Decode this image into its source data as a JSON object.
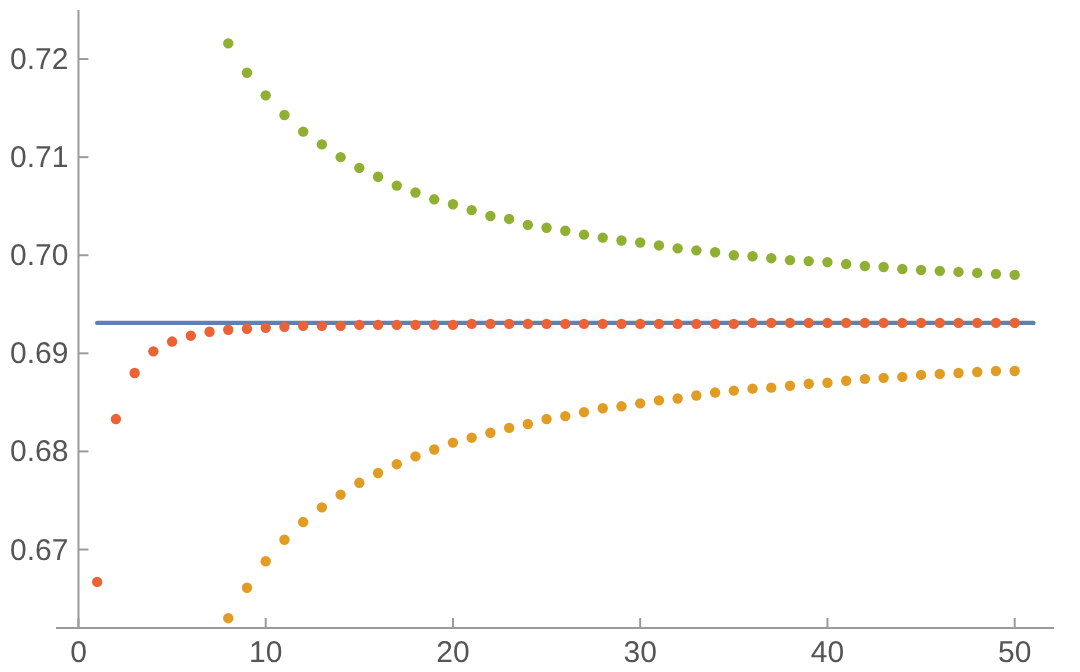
{
  "chart_data": {
    "type": "scatter",
    "xlim": [
      -1.2,
      52.1
    ],
    "ylim": [
      0.662,
      0.725
    ],
    "xticks": [
      0,
      10,
      20,
      30,
      40,
      50
    ],
    "yticks": [
      0.67,
      0.68,
      0.69,
      {
        "value": 0.7,
        "label": "0.70"
      },
      0.71,
      0.72
    ],
    "grid": false,
    "marker": "circle",
    "series": [
      {
        "type": "line",
        "marker": "none",
        "color": "#5e81b5",
        "x": [
          1,
          51
        ],
        "values": [
          0.6931,
          0.6931
        ]
      },
      {
        "color": "#eb6235",
        "x": [
          1,
          2,
          3,
          4,
          5,
          6,
          7,
          8,
          9,
          10,
          11,
          12,
          13,
          14,
          15,
          16,
          17,
          18,
          19,
          20,
          21,
          22,
          23,
          24,
          25,
          26,
          27,
          28,
          29,
          30,
          31,
          32,
          33,
          34,
          35,
          36,
          37,
          38,
          39,
          40,
          41,
          42,
          43,
          44,
          45,
          46,
          47,
          48,
          49,
          50
        ],
        "values": [
          0.6667,
          0.6833,
          0.688,
          0.6902,
          0.6912,
          0.6918,
          0.6922,
          0.6924,
          0.6925,
          0.6926,
          0.6927,
          0.6928,
          0.6928,
          0.6928,
          0.6929,
          0.6929,
          0.6929,
          0.6929,
          0.6929,
          0.6929,
          0.693,
          0.693,
          0.693,
          0.693,
          0.693,
          0.693,
          0.693,
          0.693,
          0.693,
          0.693,
          0.693,
          0.693,
          0.693,
          0.693,
          0.693,
          0.6931,
          0.6931,
          0.6931,
          0.6931,
          0.6931,
          0.6931,
          0.6931,
          0.6931,
          0.6931,
          0.6931,
          0.6931,
          0.6931,
          0.6931,
          0.6931,
          0.6931
        ]
      },
      {
        "color": "#8fb032",
        "x": [
          8,
          9,
          10,
          11,
          12,
          13,
          14,
          15,
          16,
          17,
          18,
          19,
          20,
          21,
          22,
          23,
          24,
          25,
          26,
          27,
          28,
          29,
          30,
          31,
          32,
          33,
          34,
          35,
          36,
          37,
          38,
          39,
          40,
          41,
          42,
          43,
          44,
          45,
          46,
          47,
          48,
          49,
          50
        ],
        "values": [
          0.7216,
          0.7186,
          0.7163,
          0.7143,
          0.7126,
          0.7113,
          0.71,
          0.7089,
          0.708,
          0.7071,
          0.7064,
          0.7057,
          0.7052,
          0.7046,
          0.704,
          0.7037,
          0.7031,
          0.7028,
          0.7025,
          0.7021,
          0.7018,
          0.7015,
          0.7013,
          0.701,
          0.7007,
          0.7005,
          0.7003,
          0.7,
          0.6999,
          0.6997,
          0.6995,
          0.6994,
          0.6993,
          0.6991,
          0.6989,
          0.6988,
          0.6986,
          0.6985,
          0.6984,
          0.6983,
          0.6982,
          0.6981,
          0.698
        ]
      },
      {
        "color": "#e19c24",
        "x": [
          8,
          9,
          10,
          11,
          12,
          13,
          14,
          15,
          16,
          17,
          18,
          19,
          20,
          21,
          22,
          23,
          24,
          25,
          26,
          27,
          28,
          29,
          30,
          31,
          32,
          33,
          34,
          35,
          36,
          37,
          38,
          39,
          40,
          41,
          42,
          43,
          44,
          45,
          46,
          47,
          48,
          49,
          50
        ],
        "values": [
          0.663,
          0.6661,
          0.6688,
          0.671,
          0.6728,
          0.6743,
          0.6756,
          0.6768,
          0.6778,
          0.6787,
          0.6795,
          0.6802,
          0.6809,
          0.6814,
          0.6819,
          0.6824,
          0.6828,
          0.6833,
          0.6836,
          0.684,
          0.6844,
          0.6846,
          0.6849,
          0.6852,
          0.6854,
          0.6857,
          0.686,
          0.6862,
          0.6864,
          0.6865,
          0.6867,
          0.6869,
          0.687,
          0.6872,
          0.6874,
          0.6875,
          0.6876,
          0.6878,
          0.6879,
          0.688,
          0.6881,
          0.6882,
          0.6882
        ]
      }
    ]
  }
}
